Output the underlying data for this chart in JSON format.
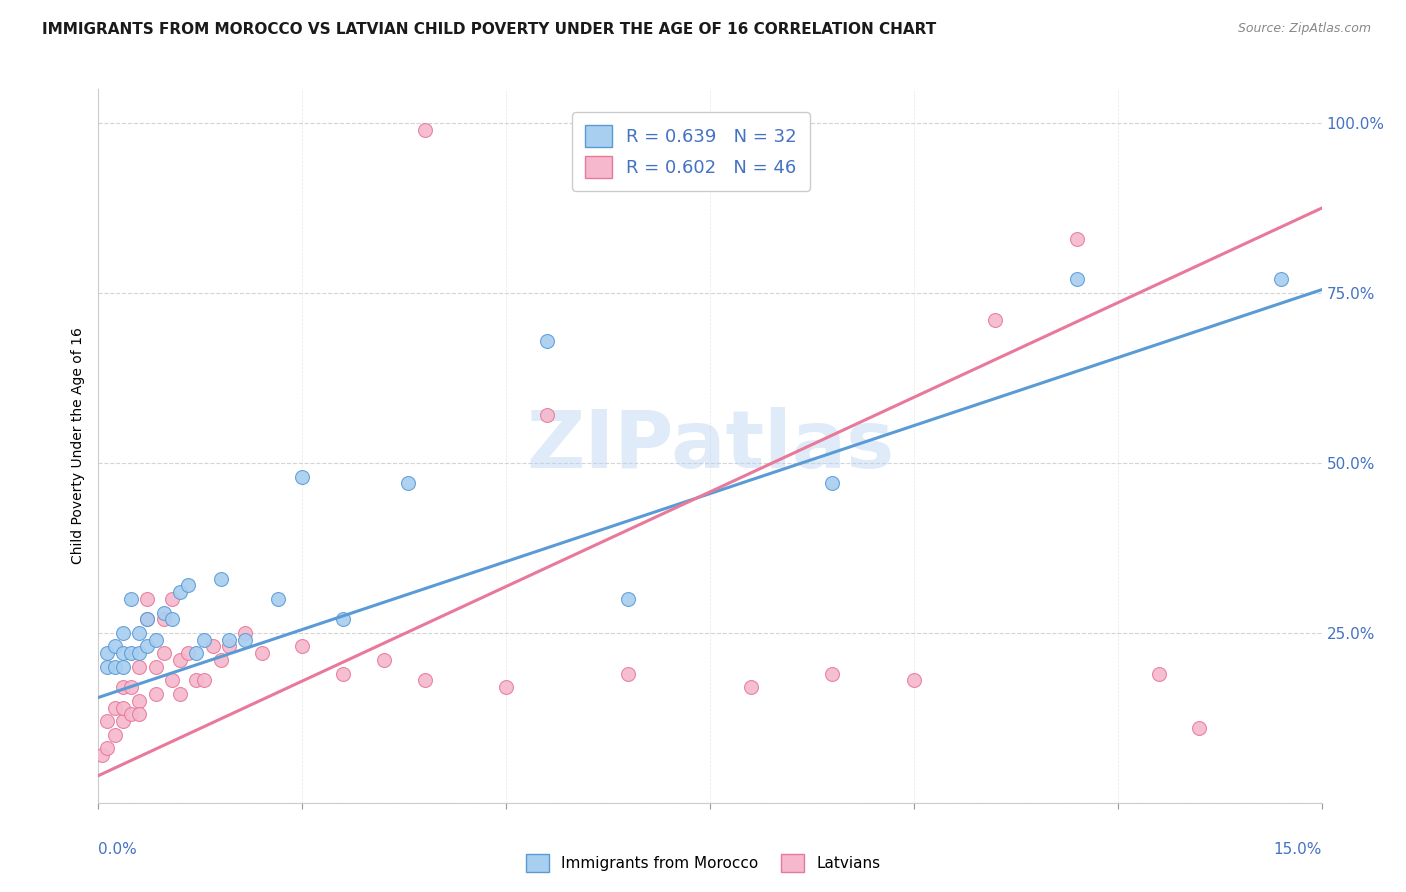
{
  "title": "IMMIGRANTS FROM MOROCCO VS LATVIAN CHILD POVERTY UNDER THE AGE OF 16 CORRELATION CHART",
  "source": "Source: ZipAtlas.com",
  "ylabel": "Child Poverty Under the Age of 16",
  "legend_r_blue": "0.639",
  "legend_n_blue": "32",
  "legend_r_pink": "0.602",
  "legend_n_pink": "46",
  "legend_label_blue": "Immigrants from Morocco",
  "legend_label_pink": "Latvians",
  "blue_color": "#a8cef0",
  "pink_color": "#f5b8cc",
  "line_blue": "#5b9bd5",
  "line_pink": "#e8799a",
  "watermark": "ZIPatlas",
  "blue_scatter_x": [
    0.001,
    0.001,
    0.002,
    0.002,
    0.003,
    0.003,
    0.003,
    0.004,
    0.004,
    0.005,
    0.005,
    0.006,
    0.006,
    0.007,
    0.008,
    0.009,
    0.01,
    0.011,
    0.012,
    0.013,
    0.015,
    0.016,
    0.018,
    0.022,
    0.025,
    0.03,
    0.038,
    0.055,
    0.065,
    0.09,
    0.12,
    0.145
  ],
  "blue_scatter_y": [
    0.2,
    0.22,
    0.2,
    0.23,
    0.2,
    0.22,
    0.25,
    0.22,
    0.3,
    0.22,
    0.25,
    0.23,
    0.27,
    0.24,
    0.28,
    0.27,
    0.31,
    0.32,
    0.22,
    0.24,
    0.33,
    0.24,
    0.24,
    0.3,
    0.48,
    0.27,
    0.47,
    0.68,
    0.3,
    0.47,
    0.77,
    0.77
  ],
  "pink_scatter_x": [
    0.0005,
    0.001,
    0.001,
    0.002,
    0.002,
    0.003,
    0.003,
    0.003,
    0.004,
    0.004,
    0.005,
    0.005,
    0.005,
    0.006,
    0.006,
    0.007,
    0.007,
    0.008,
    0.008,
    0.009,
    0.009,
    0.01,
    0.01,
    0.011,
    0.012,
    0.013,
    0.014,
    0.015,
    0.016,
    0.018,
    0.02,
    0.025,
    0.03,
    0.035,
    0.04,
    0.05,
    0.055,
    0.065,
    0.08,
    0.09,
    0.1,
    0.11,
    0.12,
    0.13,
    0.135,
    0.04
  ],
  "pink_scatter_y": [
    0.07,
    0.08,
    0.12,
    0.1,
    0.14,
    0.12,
    0.14,
    0.17,
    0.13,
    0.17,
    0.15,
    0.13,
    0.2,
    0.27,
    0.3,
    0.16,
    0.2,
    0.22,
    0.27,
    0.18,
    0.3,
    0.16,
    0.21,
    0.22,
    0.18,
    0.18,
    0.23,
    0.21,
    0.23,
    0.25,
    0.22,
    0.23,
    0.19,
    0.21,
    0.18,
    0.17,
    0.57,
    0.19,
    0.17,
    0.19,
    0.18,
    0.71,
    0.83,
    0.19,
    0.11,
    0.99
  ],
  "blue_line_x": [
    0.0,
    0.15
  ],
  "blue_line_y": [
    0.155,
    0.755
  ],
  "pink_line_x": [
    0.0,
    0.15
  ],
  "pink_line_y": [
    0.04,
    0.875
  ],
  "xlim": [
    0.0,
    0.15
  ],
  "ylim": [
    0.0,
    1.05
  ],
  "axis_color": "#4472c4",
  "grid_color": "#d0d0d0",
  "marker_size": 100,
  "title_fontsize": 11,
  "source_fontsize": 9,
  "ylabel_fontsize": 10,
  "ytick_fontsize": 11,
  "xtick_label_fontsize": 11
}
